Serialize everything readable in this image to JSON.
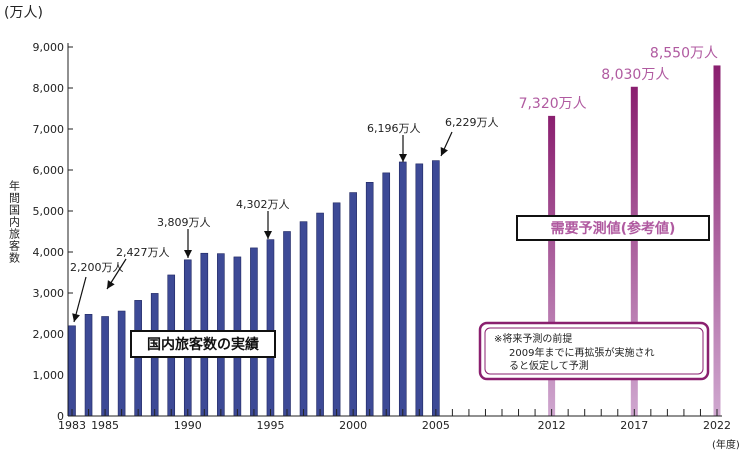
{
  "chart_data": {
    "type": "bar",
    "unit_label": "(万人)",
    "ylabel": "年間国内旅客数",
    "xunit": "(年度)",
    "ylim": [
      0,
      9000
    ],
    "y_ticks": [
      0,
      1000,
      2000,
      3000,
      4000,
      5000,
      6000,
      7000,
      8000,
      9000
    ],
    "y_tick_labels": [
      "0",
      "1,000",
      "2,000",
      "3,000",
      "4,000",
      "5,000",
      "6,000",
      "7,000",
      "8,000",
      "9,000"
    ],
    "x_range": [
      1983,
      2022
    ],
    "x_tick_labels": [
      {
        "year": 1983,
        "label": "1983"
      },
      {
        "year": 1985,
        "label": "1985"
      },
      {
        "year": 1990,
        "label": "1990"
      },
      {
        "year": 1995,
        "label": "1995"
      },
      {
        "year": 2000,
        "label": "2000"
      },
      {
        "year": 2005,
        "label": "2005"
      },
      {
        "year": 2012,
        "label": "2012"
      },
      {
        "year": 2017,
        "label": "2017"
      },
      {
        "year": 2022,
        "label": "2022"
      }
    ],
    "series": [
      {
        "name": "国内旅客数の実績",
        "color": "#3d4a96",
        "x": [
          1983,
          1984,
          1985,
          1986,
          1987,
          1988,
          1989,
          1990,
          1991,
          1992,
          1993,
          1994,
          1995,
          1996,
          1997,
          1998,
          1999,
          2000,
          2001,
          2002,
          2003,
          2004,
          2005
        ],
        "values": [
          2200,
          2480,
          2427,
          2560,
          2820,
          2990,
          3440,
          3809,
          3970,
          3960,
          3880,
          4100,
          4302,
          4500,
          4740,
          4950,
          5200,
          5450,
          5700,
          5930,
          6196,
          6150,
          6229
        ]
      },
      {
        "name": "需要予測値(参考値)",
        "color": "#b05aa0",
        "x": [
          2012,
          2017,
          2022
        ],
        "values": [
          7320,
          8030,
          8550
        ]
      }
    ],
    "annotations": [
      {
        "text": "2,200万人",
        "year": 1983,
        "value": 2200
      },
      {
        "text": "2,427万人",
        "year": 1985,
        "value": 2427
      },
      {
        "text": "3,809万人",
        "year": 1990,
        "value": 3809
      },
      {
        "text": "4,302万人",
        "year": 1995,
        "value": 4302
      },
      {
        "text": "6,196万人",
        "year": 2003,
        "value": 6196
      },
      {
        "text": "6,229万人",
        "year": 2005,
        "value": 6229
      }
    ],
    "forecast_labels": [
      {
        "text": "7,320万人",
        "year": 2012
      },
      {
        "text": "8,030万人",
        "year": 2017
      },
      {
        "text": "8,550万人",
        "year": 2022
      }
    ],
    "actual_label": "国内旅客数の実績",
    "forecast_label": "需要予測値(参考値)",
    "note": {
      "title": "※将来予測の前提",
      "line1": "2009年までに再拡張が実施され",
      "line2": "ると仮定して予測"
    }
  }
}
